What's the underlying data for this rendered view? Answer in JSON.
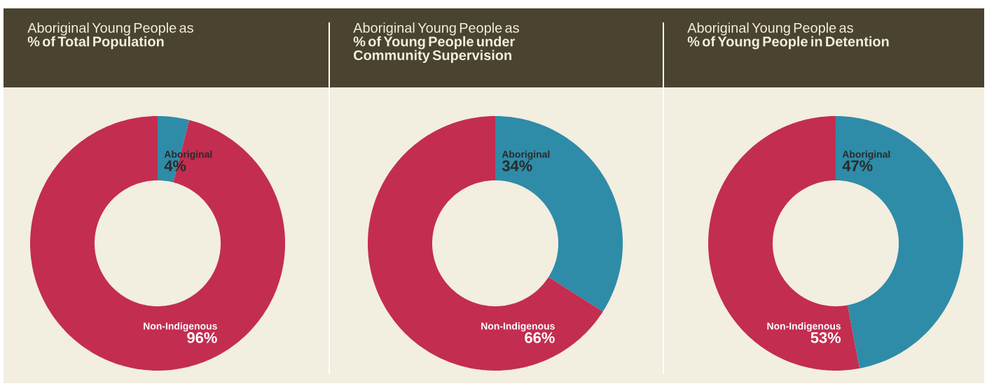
{
  "chart_data": [
    {
      "type": "donut",
      "title": "Aboriginal Young People as",
      "subtitle": "% of Total Population",
      "categories": [
        "Aboriginal",
        "Non-Indigenous"
      ],
      "values": [
        4,
        96
      ],
      "value_labels": [
        "4%",
        "96%"
      ],
      "colors": [
        "#2e8ca8",
        "#c32d50"
      ]
    },
    {
      "type": "donut",
      "title": "Aboriginal Young People as",
      "subtitle": "% of Young People under Community Supervision",
      "categories": [
        "Aboriginal",
        "Non-Indigenous"
      ],
      "values": [
        34,
        66
      ],
      "value_labels": [
        "34%",
        "66%"
      ],
      "colors": [
        "#2e8ca8",
        "#c32d50"
      ]
    },
    {
      "type": "donut",
      "title": "Aboriginal Young People as",
      "subtitle": "% of Young People in Detention",
      "categories": [
        "Aboriginal",
        "Non-Indigenous"
      ],
      "values": [
        47,
        53
      ],
      "value_labels": [
        "47%",
        "53%"
      ],
      "colors": [
        "#2e8ca8",
        "#c32d50"
      ]
    }
  ]
}
